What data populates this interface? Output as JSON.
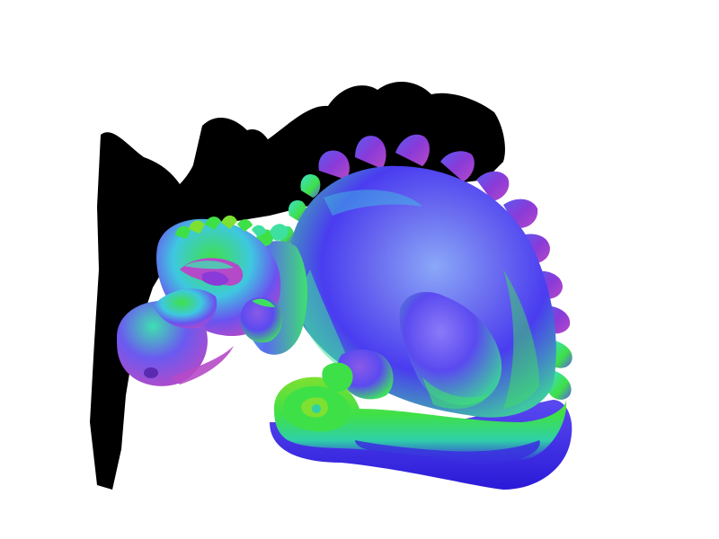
{
  "scene": {
    "subject": "dragon",
    "background_color": "#ffffff",
    "shadow_color": "#000000",
    "shading": "surface-normal-colors",
    "palette": {
      "blue": "#4a3cf0",
      "violet": "#8a3ad8",
      "magenta": "#b54ac8",
      "cyan": "#3ec8e0",
      "teal": "#2fd0a8",
      "green": "#3ee048",
      "lime": "#7ee030",
      "deep_blue": "#2a1ad8"
    }
  }
}
